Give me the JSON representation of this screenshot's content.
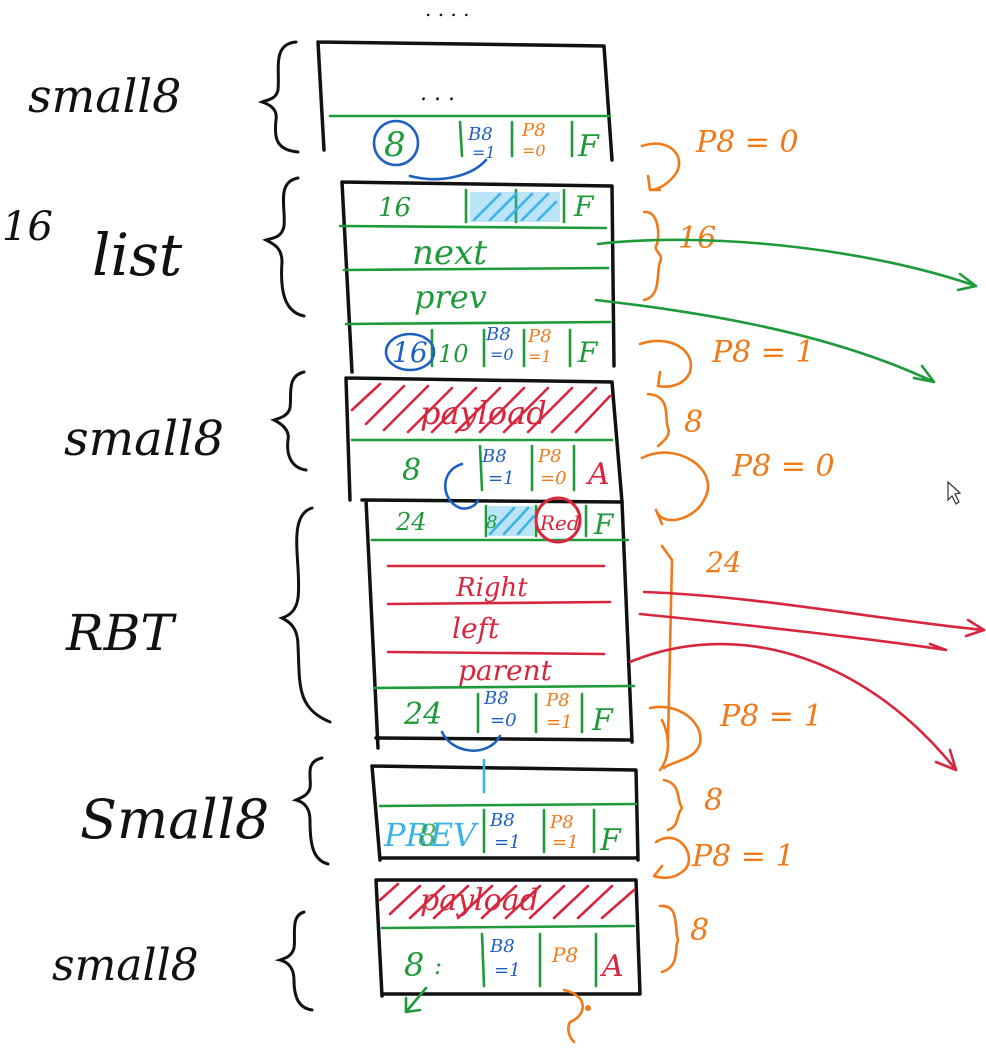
{
  "colors": {
    "ink": "#111111",
    "green": "#1f9a3a",
    "red": "#d7263d",
    "orange": "#f07a1a",
    "blue": "#1f5fbf",
    "cyan": "#3bb3e6"
  },
  "top_dots": ". . . .",
  "labels": {
    "small8_top": "small8",
    "sixteen": "16",
    "list": "list",
    "small8_mid": "small8",
    "rbt": "RBT",
    "small8_lower": "Small8",
    "small8_bottom": "small8"
  },
  "block1": {
    "dots": ". . .",
    "size": "8",
    "b8": "B8",
    "b8_val": "=1",
    "p8": "P8",
    "p8_val": "=0",
    "flag": "F"
  },
  "block2": {
    "size": "16",
    "flag": "F",
    "next": "next",
    "prev": "prev",
    "footer_size": "16",
    "footer_extra": "10",
    "b8": "B8",
    "b8_val": "=0",
    "p8": "P8",
    "p8_val": "=1",
    "footer_flag": "F"
  },
  "block3": {
    "payload": "payload",
    "size": "8",
    "b8": "B8",
    "b8_val": "=1",
    "p8": "P8",
    "p8_val": "=0",
    "flag": "A"
  },
  "block4": {
    "size": "24",
    "small": "8",
    "red_tag": "Red",
    "flag": "F",
    "right": "Right",
    "left": "left",
    "parent": "parent",
    "footer_size": "24",
    "b8": "B8",
    "b8_val": "=0",
    "p8": "P8",
    "p8_val": "=1",
    "footer_flag": "F"
  },
  "block5": {
    "prev": "PREV",
    "size": "8",
    "b8": "B8",
    "b8_val": "=1",
    "p8": "P8",
    "p8_val": "=1",
    "flag": "F"
  },
  "block6": {
    "payload": "payload",
    "size": "8",
    "colon": ":",
    "b8": "B8",
    "b8_val": "=1",
    "p8": "P8",
    "flag": "A"
  },
  "annotations": {
    "p8_0_top": "P8 = 0",
    "sixteen": "16",
    "p8_1_a": "P8 = 1",
    "eight_a": "8",
    "p8_0_mid": "P8 = 0",
    "twenty_four": "24",
    "p8_1_b": "P8 = 1",
    "eight_b": "8",
    "p8_1_c": "P8 = 1",
    "eight_c": "8"
  }
}
